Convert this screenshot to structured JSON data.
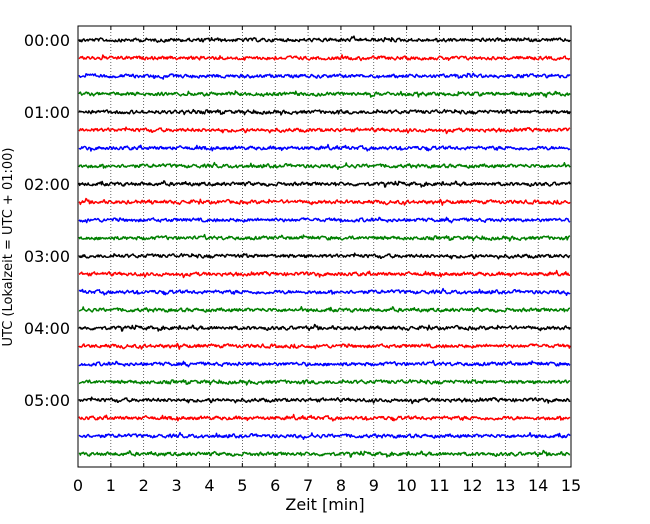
{
  "chart_data": {
    "type": "line",
    "title": "",
    "xlabel": "Zeit  [min]",
    "ylabel": "UTC (Lokalzeit = UTC + 01:00)",
    "xlim": [
      0,
      15
    ],
    "x_ticks": [
      0,
      1,
      2,
      3,
      4,
      5,
      6,
      7,
      8,
      9,
      10,
      11,
      12,
      13,
      14,
      15
    ],
    "x_tick_labels": [
      "0",
      "1",
      "2",
      "3",
      "4",
      "5",
      "6",
      "7",
      "8",
      "9",
      "10",
      "11",
      "12",
      "13",
      "14",
      "15"
    ],
    "y_tick_labels": [
      "00:00",
      "01:00",
      "02:00",
      "03:00",
      "04:00",
      "05:00"
    ],
    "grid": "vertical dotted",
    "legend": "none",
    "trace_colors": [
      "#000000",
      "#ff0000",
      "#0000ff",
      "#008000"
    ],
    "traces_per_hour": 4,
    "minutes_per_trace": 15,
    "series": [
      {
        "start_utc": "00:00",
        "color": "#000000"
      },
      {
        "start_utc": "00:15",
        "color": "#ff0000"
      },
      {
        "start_utc": "00:30",
        "color": "#0000ff"
      },
      {
        "start_utc": "00:45",
        "color": "#008000"
      },
      {
        "start_utc": "01:00",
        "color": "#000000"
      },
      {
        "start_utc": "01:15",
        "color": "#ff0000"
      },
      {
        "start_utc": "01:30",
        "color": "#0000ff"
      },
      {
        "start_utc": "01:45",
        "color": "#008000"
      },
      {
        "start_utc": "02:00",
        "color": "#000000"
      },
      {
        "start_utc": "02:15",
        "color": "#ff0000"
      },
      {
        "start_utc": "02:30",
        "color": "#0000ff"
      },
      {
        "start_utc": "02:45",
        "color": "#008000"
      },
      {
        "start_utc": "03:00",
        "color": "#000000"
      },
      {
        "start_utc": "03:15",
        "color": "#ff0000"
      },
      {
        "start_utc": "03:30",
        "color": "#0000ff"
      },
      {
        "start_utc": "03:45",
        "color": "#008000"
      },
      {
        "start_utc": "04:00",
        "color": "#000000"
      },
      {
        "start_utc": "04:15",
        "color": "#ff0000"
      },
      {
        "start_utc": "04:30",
        "color": "#0000ff"
      },
      {
        "start_utc": "04:45",
        "color": "#008000"
      },
      {
        "start_utc": "05:00",
        "color": "#000000"
      },
      {
        "start_utc": "05:15",
        "color": "#ff0000"
      },
      {
        "start_utc": "05:30",
        "color": "#0000ff"
      },
      {
        "start_utc": "05:45",
        "color": "#008000"
      }
    ]
  }
}
